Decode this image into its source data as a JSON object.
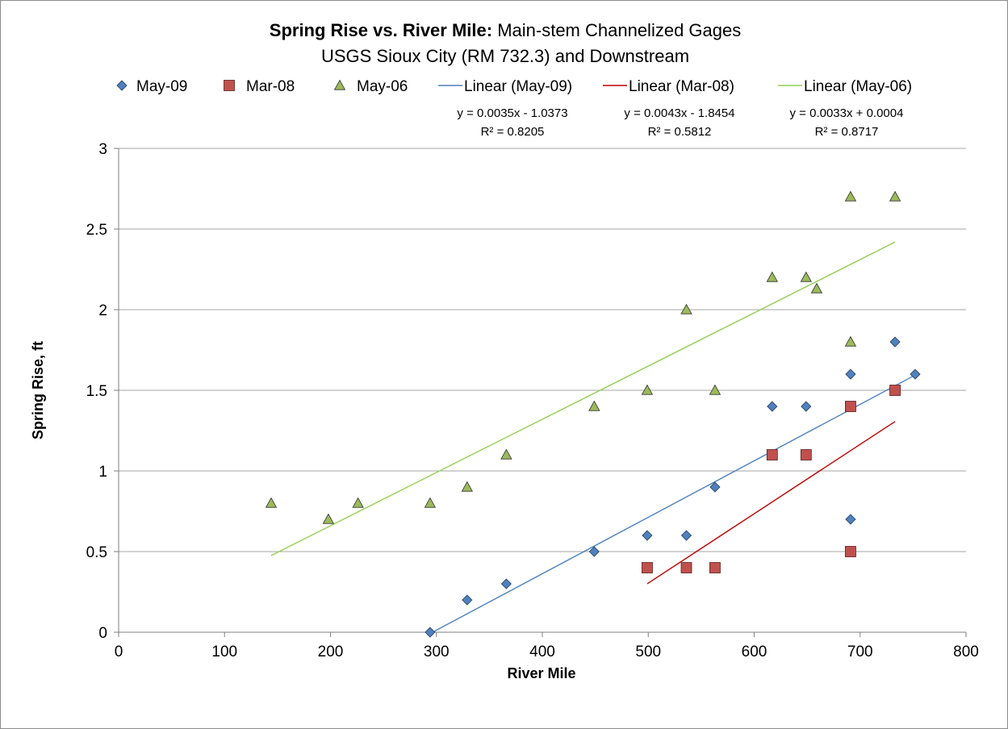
{
  "chart_data": {
    "type": "scatter",
    "title_bold": "Spring Rise vs. River Mile:",
    "title_rest": " Main-stem Channelized Gages",
    "subtitle": "USGS Sioux City (RM 732.3) and Downstream",
    "xlabel": "River Mile",
    "ylabel": "Spring Rise, ft",
    "xlim": [
      0,
      800
    ],
    "ylim": [
      0,
      3
    ],
    "x_ticks": [
      0,
      100,
      200,
      300,
      400,
      500,
      600,
      700,
      800
    ],
    "y_ticks": [
      0,
      0.5,
      1,
      1.5,
      2,
      2.5,
      3
    ],
    "grid": "horizontal",
    "legend_position": "top",
    "series": [
      {
        "name": "May-09",
        "marker": "diamond",
        "color": "#4f81bd",
        "points": [
          [
            294,
            0
          ],
          [
            329,
            0.2
          ],
          [
            366,
            0.3
          ],
          [
            449,
            0.5
          ],
          [
            499,
            0.6
          ],
          [
            536,
            0.6
          ],
          [
            563,
            0.9
          ],
          [
            617,
            1.4
          ],
          [
            649,
            1.4
          ],
          [
            691,
            1.6
          ],
          [
            691,
            0.7
          ],
          [
            733,
            1.8
          ],
          [
            752,
            1.6
          ]
        ]
      },
      {
        "name": "Mar-08",
        "marker": "square",
        "color": "#c0504d",
        "points": [
          [
            499,
            0.4
          ],
          [
            536,
            0.4
          ],
          [
            563,
            0.4
          ],
          [
            617,
            1.1
          ],
          [
            649,
            1.1
          ],
          [
            691,
            1.4
          ],
          [
            691,
            0.5
          ],
          [
            733,
            1.5
          ]
        ]
      },
      {
        "name": "May-06",
        "marker": "triangle",
        "color": "#9bbb59",
        "points": [
          [
            144,
            0.8
          ],
          [
            198,
            0.7
          ],
          [
            226,
            0.8
          ],
          [
            294,
            0.8
          ],
          [
            329,
            0.9
          ],
          [
            366,
            1.1
          ],
          [
            449,
            1.4
          ],
          [
            499,
            1.5
          ],
          [
            536,
            2.0
          ],
          [
            563,
            1.5
          ],
          [
            617,
            2.2
          ],
          [
            649,
            2.2
          ],
          [
            659,
            2.13
          ],
          [
            691,
            2.7
          ],
          [
            691,
            1.8
          ],
          [
            733,
            2.7
          ]
        ]
      }
    ],
    "trendlines": [
      {
        "name": "Linear (May-09)",
        "color": "#4f81bd",
        "slope": 0.0035,
        "intercept": -1.0373,
        "x_range": [
          294,
          752
        ],
        "equation": "y = 0.0035x - 1.0373",
        "r2": "R² = 0.8205"
      },
      {
        "name": "Linear (Mar-08)",
        "color": "#c00000",
        "slope": 0.0043,
        "intercept": -1.8454,
        "x_range": [
          499,
          733
        ],
        "equation": "y = 0.0043x - 1.8454",
        "r2": "R² = 0.5812"
      },
      {
        "name": "Linear (May-06)",
        "color": "#92d050",
        "slope": 0.0033,
        "intercept": 0.0004,
        "x_range": [
          144,
          733
        ],
        "equation": "y = 0.0033x + 0.0004",
        "r2": "R² = 0.8717"
      }
    ]
  }
}
